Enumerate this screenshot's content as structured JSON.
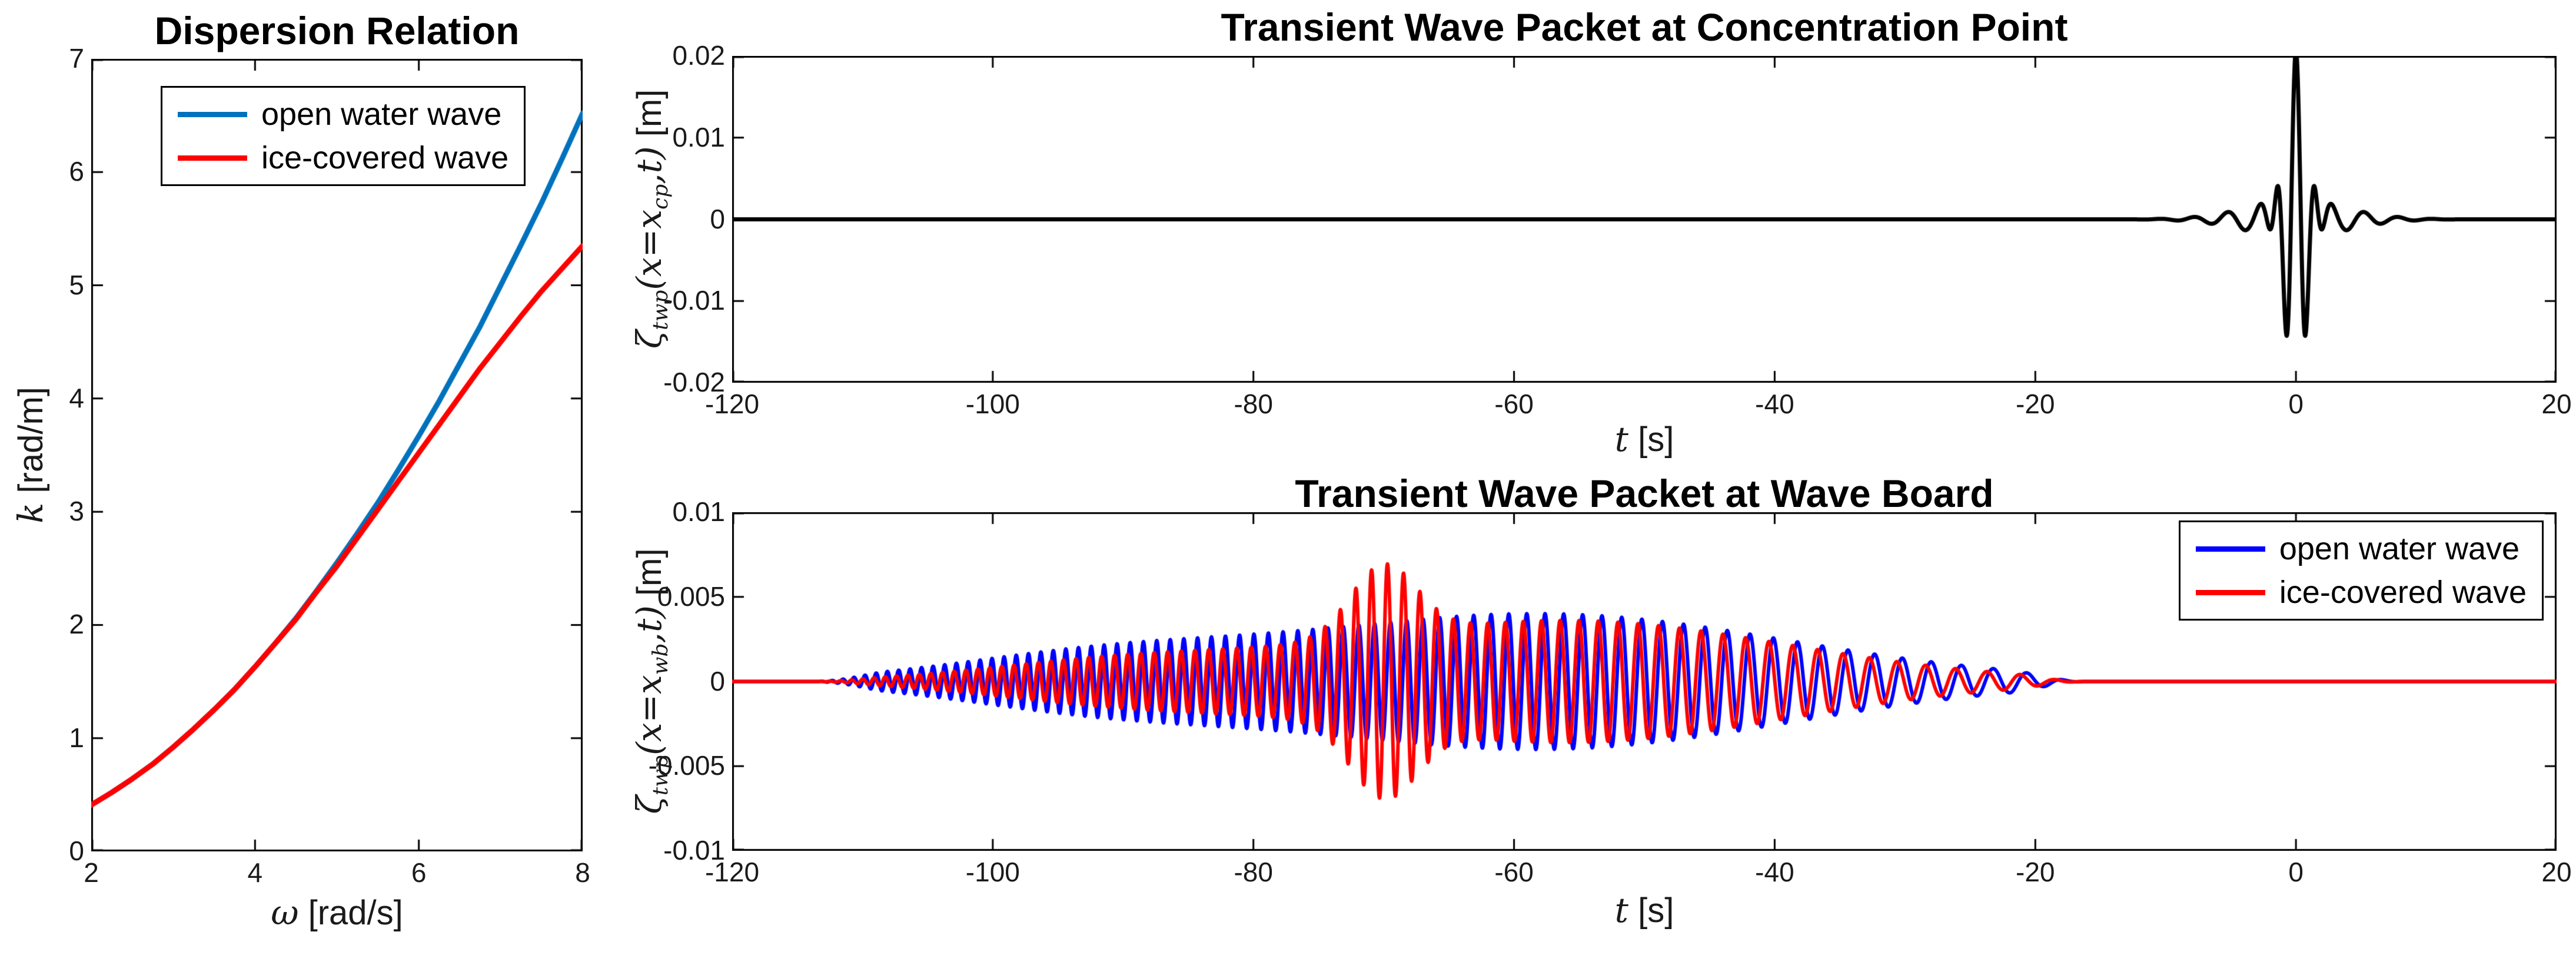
{
  "figure": {
    "background": "#ffffff",
    "axis_color": "#000000",
    "tick_label_color": "#1a1a1a"
  },
  "chart_data": [
    {
      "id": "dispersion",
      "type": "line",
      "title": "Dispersion Relation",
      "xlabel_parts": [
        {
          "text": "ω",
          "math": true
        },
        {
          "text": " [rad/s]"
        }
      ],
      "ylabel_parts": [
        {
          "text": "k",
          "math": true
        },
        {
          "text": " [rad/m]"
        }
      ],
      "xlim": [
        2,
        8
      ],
      "ylim": [
        0,
        7
      ],
      "grid": false,
      "xticks": [
        2,
        4,
        6,
        8
      ],
      "xtick_labels": [
        "2",
        "4",
        "6",
        "8"
      ],
      "yticks": [
        0,
        1,
        2,
        3,
        4,
        5,
        6,
        7
      ],
      "ytick_labels": [
        "0",
        "1",
        "2",
        "3",
        "4",
        "5",
        "6",
        "7"
      ],
      "legend": {
        "position": "top-left",
        "offset": [
          118,
          46
        ],
        "entries": [
          {
            "label": "open water wave",
            "color": "#0072BD"
          },
          {
            "label": "ice-covered wave",
            "color": "#FF0000"
          }
        ]
      },
      "series": [
        {
          "name": "open water wave",
          "color": "#0072BD",
          "width": 9,
          "kind": "points",
          "x": [
            2,
            2.25,
            2.5,
            2.75,
            3,
            3.25,
            3.5,
            3.75,
            4,
            4.25,
            4.5,
            4.75,
            5,
            5.25,
            5.5,
            5.75,
            6,
            6.25,
            6.5,
            6.75,
            7,
            7.25,
            7.5,
            7.75,
            8
          ],
          "y": [
            0.41,
            0.52,
            0.64,
            0.77,
            0.92,
            1.08,
            1.25,
            1.43,
            1.63,
            1.84,
            2.06,
            2.3,
            2.55,
            2.81,
            3.08,
            3.37,
            3.67,
            3.98,
            4.31,
            4.64,
            5.0,
            5.36,
            5.73,
            6.12,
            6.52
          ]
        },
        {
          "name": "ice-covered wave",
          "color": "#FF0000",
          "width": 9,
          "kind": "points",
          "x": [
            2,
            2.25,
            2.5,
            2.75,
            3,
            3.25,
            3.5,
            3.75,
            4,
            4.25,
            4.5,
            4.75,
            5,
            5.25,
            5.5,
            5.75,
            6,
            6.25,
            6.5,
            6.75,
            7,
            7.25,
            7.5,
            7.75,
            8
          ],
          "y": [
            0.41,
            0.52,
            0.64,
            0.77,
            0.92,
            1.08,
            1.25,
            1.43,
            1.63,
            1.84,
            2.05,
            2.29,
            2.52,
            2.77,
            3.02,
            3.27,
            3.52,
            3.77,
            4.02,
            4.27,
            4.5,
            4.73,
            4.95,
            5.15,
            5.35
          ]
        }
      ]
    },
    {
      "id": "twp-concentration-point",
      "type": "line",
      "title": "Transient Wave Packet at Concentration Point",
      "xlabel_parts": [
        {
          "text": "t",
          "math": true
        },
        {
          "text": " [s]"
        }
      ],
      "ylabel_parts": [
        {
          "text": "ζ",
          "math": true
        },
        {
          "text": "twp",
          "math": true,
          "sub": true
        },
        {
          "text": "(x=x",
          "math": true
        },
        {
          "text": "cp",
          "math": true,
          "sub": true
        },
        {
          "text": ",t)",
          "math": true
        },
        {
          "text": " [m]"
        }
      ],
      "xlim": [
        -120,
        20
      ],
      "ylim": [
        -0.02,
        0.02
      ],
      "grid": false,
      "xticks": [
        -120,
        -100,
        -80,
        -60,
        -40,
        -20,
        0,
        20
      ],
      "xtick_labels": [
        "-120",
        "-100",
        "-80",
        "-60",
        "-40",
        "-20",
        "0",
        "20"
      ],
      "yticks": [
        -0.02,
        -0.01,
        0,
        0.01,
        0.02
      ],
      "ytick_labels": [
        "-0.02",
        "-0.01",
        "0",
        "0.01",
        "0.02"
      ],
      "series": [
        {
          "name": "wave packet at concentration point",
          "color": "#000000",
          "width": 7,
          "kind": "signal",
          "gabors": [
            {
              "amp": 0.0185,
              "center": 0,
              "width": 1.35,
              "omega": 4.3,
              "phase": 0
            },
            {
              "amp": 0.0022,
              "center": 0,
              "width": 5.5,
              "omega": 2.4,
              "phase": 0
            }
          ]
        }
      ]
    },
    {
      "id": "twp-wave-board",
      "type": "line",
      "title": "Transient Wave Packet at Wave Board",
      "xlabel_parts": [
        {
          "text": "t",
          "math": true
        },
        {
          "text": " [s]"
        }
      ],
      "ylabel_parts": [
        {
          "text": "ζ",
          "math": true
        },
        {
          "text": "twp",
          "math": true,
          "sub": true
        },
        {
          "text": "(x=x",
          "math": true
        },
        {
          "text": "wb",
          "math": true,
          "sub": true
        },
        {
          "text": ",t)",
          "math": true
        },
        {
          "text": " [m]"
        }
      ],
      "xlim": [
        -120,
        20
      ],
      "ylim": [
        -0.01,
        0.01
      ],
      "grid": false,
      "xticks": [
        -120,
        -100,
        -80,
        -60,
        -40,
        -20,
        0,
        20
      ],
      "xtick_labels": [
        "-120",
        "-100",
        "-80",
        "-60",
        "-40",
        "-20",
        "0",
        "20"
      ],
      "yticks": [
        -0.01,
        -0.005,
        0,
        0.005,
        0.01
      ],
      "ytick_labels": [
        "-0.01",
        "-0.005",
        "0",
        "0.005",
        "0.01"
      ],
      "legend": {
        "position": "top-right",
        "offset": [
          22,
          14
        ],
        "entries": [
          {
            "label": "open water wave",
            "color": "#0000FF"
          },
          {
            "label": "ice-covered wave",
            "color": "#FF0000"
          }
        ]
      },
      "series": [
        {
          "name": "open water wave",
          "color": "#0000FF",
          "width": 6,
          "kind": "signal",
          "chirp": {
            "t_start": -114,
            "t_end": -16,
            "omega_start": 7.6,
            "omega_end": 2.1,
            "taper": 6,
            "phase": 0,
            "envelope": [
              {
                "amp": 0.004,
                "center": -58,
                "width": 27
              },
              {
                "amp": 0.0013,
                "center": -92,
                "width": 16
              }
            ]
          }
        },
        {
          "name": "ice-covered wave",
          "color": "#FF0000",
          "width": 6,
          "kind": "signal",
          "chirp": {
            "t_start": -114,
            "t_end": -16,
            "omega_start": 7.6,
            "omega_end": 2.1,
            "taper": 6,
            "phase": 1.2,
            "envelope": [
              {
                "amp": 0.0036,
                "center": -56,
                "width": 24
              },
              {
                "amp": 0.0011,
                "center": -90,
                "width": 15
              },
              {
                "amp": 0.0042,
                "center": -70,
                "width": 3.6
              }
            ]
          }
        }
      ]
    }
  ]
}
